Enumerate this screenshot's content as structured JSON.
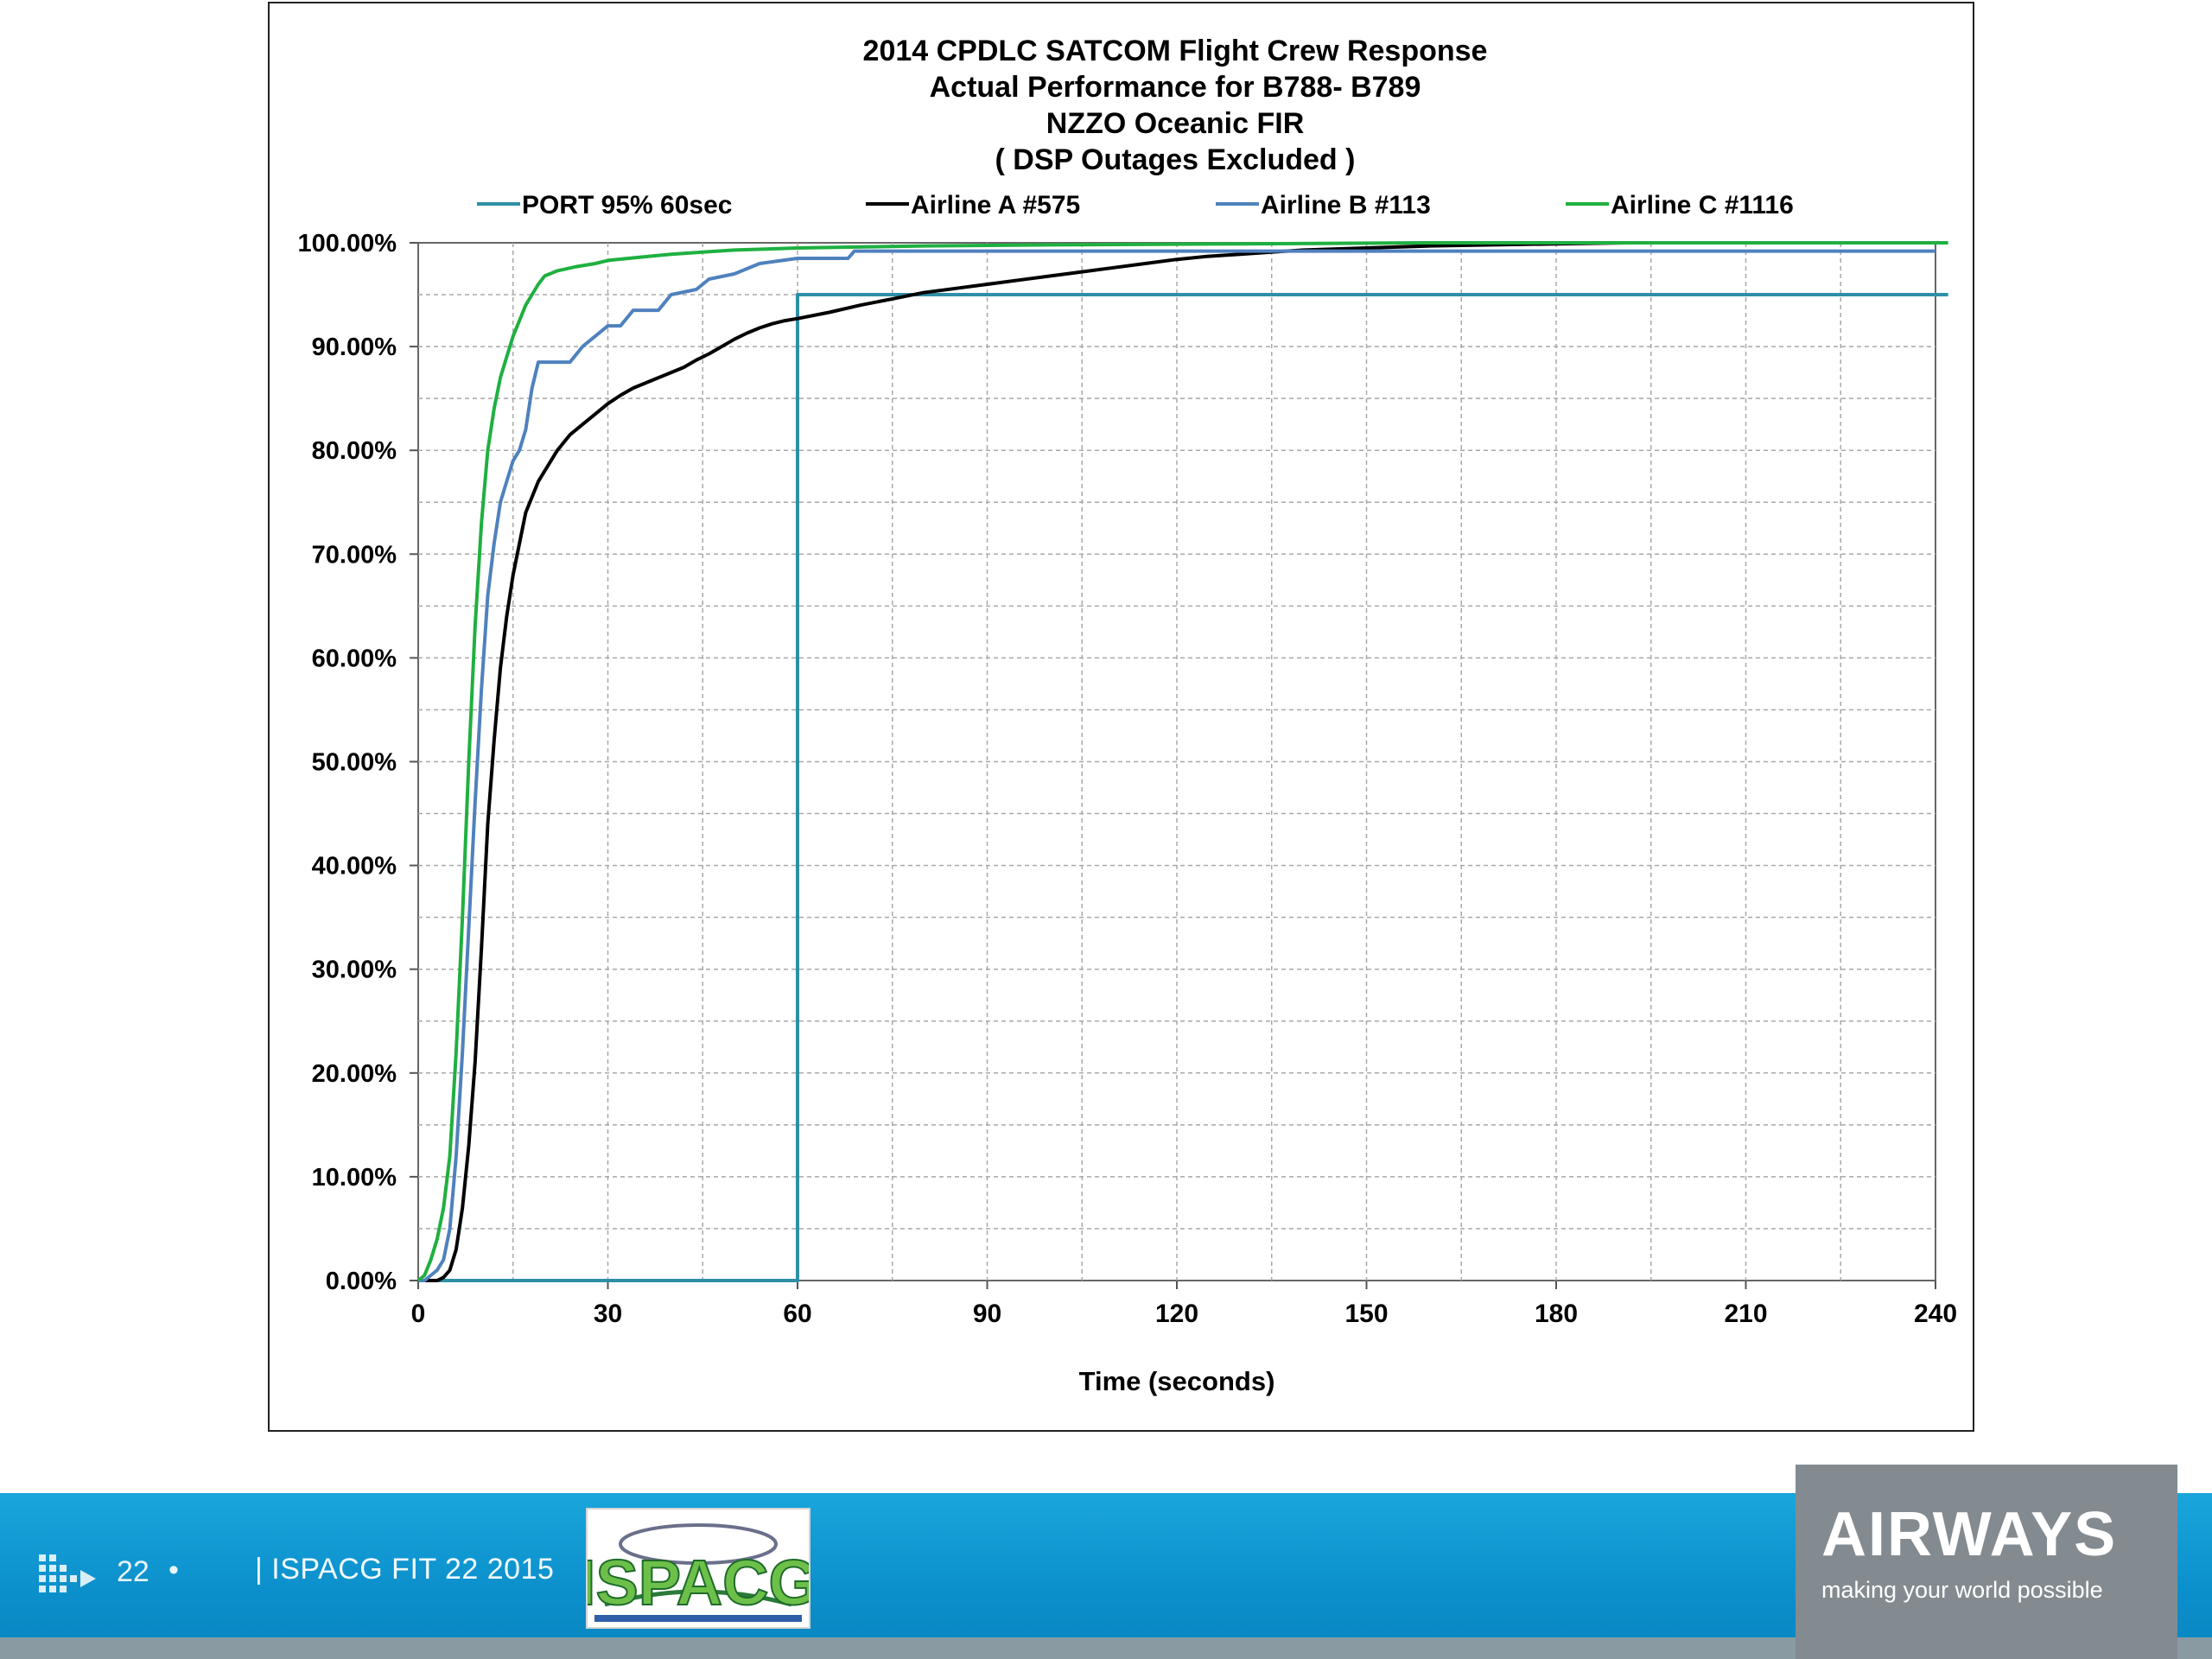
{
  "chart_data": {
    "type": "line",
    "title_lines": [
      "2014 CPDLC  SATCOM   Flight Crew Response",
      "Actual Performance  for B788- B789",
      "NZZO Oceanic FIR",
      "( DSP Outages Excluded )"
    ],
    "xlabel": "Time (seconds)",
    "ylabel": "",
    "xlim": [
      0,
      240
    ],
    "ylim": [
      0,
      100
    ],
    "x_ticks": [
      "0",
      "30",
      "60",
      "90",
      "120",
      "150",
      "180",
      "210",
      "240"
    ],
    "y_ticks": [
      "0.00%",
      "10.00%",
      "20.00%",
      "30.00%",
      "40.00%",
      "50.00%",
      "60.00%",
      "70.00%",
      "80.00%",
      "90.00%",
      "100.00%"
    ],
    "grid": true,
    "legend_position": "top",
    "series": [
      {
        "name": "PORT 95%  60sec",
        "color": "#2e8fa6",
        "points": [
          [
            0,
            0
          ],
          [
            59,
            0
          ],
          [
            60,
            0
          ],
          [
            60,
            95
          ],
          [
            242,
            95
          ]
        ]
      },
      {
        "name": "Airline A #575",
        "color": "#000000",
        "points": [
          [
            0,
            0
          ],
          [
            3,
            0
          ],
          [
            4,
            0.3
          ],
          [
            5,
            1
          ],
          [
            6,
            3
          ],
          [
            7,
            7
          ],
          [
            8,
            13
          ],
          [
            9,
            21
          ],
          [
            10,
            32
          ],
          [
            11,
            44
          ],
          [
            12,
            52
          ],
          [
            13,
            59
          ],
          [
            14,
            64
          ],
          [
            15,
            68
          ],
          [
            16,
            71
          ],
          [
            17,
            74
          ],
          [
            18,
            75.5
          ],
          [
            19,
            77
          ],
          [
            20,
            78
          ],
          [
            22,
            80
          ],
          [
            24,
            81.5
          ],
          [
            26,
            82.5
          ],
          [
            28,
            83.5
          ],
          [
            30,
            84.5
          ],
          [
            32,
            85.3
          ],
          [
            34,
            86
          ],
          [
            36,
            86.5
          ],
          [
            38,
            87
          ],
          [
            40,
            87.5
          ],
          [
            42,
            88
          ],
          [
            44,
            88.7
          ],
          [
            46,
            89.3
          ],
          [
            48,
            90
          ],
          [
            50,
            90.7
          ],
          [
            52,
            91.3
          ],
          [
            54,
            91.8
          ],
          [
            56,
            92.2
          ],
          [
            58,
            92.5
          ],
          [
            60,
            92.7
          ],
          [
            65,
            93.3
          ],
          [
            70,
            94
          ],
          [
            75,
            94.6
          ],
          [
            80,
            95.2
          ],
          [
            85,
            95.6
          ],
          [
            90,
            96
          ],
          [
            95,
            96.4
          ],
          [
            100,
            96.8
          ],
          [
            105,
            97.2
          ],
          [
            110,
            97.6
          ],
          [
            115,
            98
          ],
          [
            120,
            98.4
          ],
          [
            125,
            98.7
          ],
          [
            130,
            98.9
          ],
          [
            135,
            99.1
          ],
          [
            140,
            99.3
          ],
          [
            150,
            99.5
          ],
          [
            160,
            99.7
          ],
          [
            170,
            99.8
          ],
          [
            180,
            99.9
          ],
          [
            191,
            100
          ]
        ]
      },
      {
        "name": "Airline B #113",
        "color": "#4f81bd",
        "points": [
          [
            0,
            0
          ],
          [
            1,
            0
          ],
          [
            2,
            0.5
          ],
          [
            3,
            1
          ],
          [
            4,
            2
          ],
          [
            5,
            5
          ],
          [
            6,
            12
          ],
          [
            7,
            22
          ],
          [
            8,
            34
          ],
          [
            9,
            46
          ],
          [
            10,
            57
          ],
          [
            11,
            66
          ],
          [
            12,
            71
          ],
          [
            13,
            75
          ],
          [
            14,
            77
          ],
          [
            15,
            79
          ],
          [
            16,
            80
          ],
          [
            17,
            82
          ],
          [
            18,
            86
          ],
          [
            19,
            88.5
          ],
          [
            20,
            88.5
          ],
          [
            24,
            88.5
          ],
          [
            26,
            90
          ],
          [
            28,
            91
          ],
          [
            30,
            92
          ],
          [
            32,
            92
          ],
          [
            34,
            93.5
          ],
          [
            38,
            93.5
          ],
          [
            40,
            95
          ],
          [
            44,
            95.5
          ],
          [
            46,
            96.5
          ],
          [
            50,
            97
          ],
          [
            54,
            98
          ],
          [
            60,
            98.5
          ],
          [
            68,
            98.5
          ],
          [
            69,
            99.2
          ],
          [
            240,
            99.2
          ]
        ]
      },
      {
        "name": "Airline C #1116",
        "color": "#1fb040",
        "points": [
          [
            0,
            0
          ],
          [
            1,
            0.5
          ],
          [
            2,
            2
          ],
          [
            3,
            4
          ],
          [
            4,
            7
          ],
          [
            5,
            12
          ],
          [
            6,
            22
          ],
          [
            7,
            35
          ],
          [
            8,
            50
          ],
          [
            9,
            63
          ],
          [
            10,
            73
          ],
          [
            11,
            80
          ],
          [
            12,
            84
          ],
          [
            13,
            87
          ],
          [
            14,
            89
          ],
          [
            15,
            91
          ],
          [
            16,
            92.5
          ],
          [
            17,
            94
          ],
          [
            18,
            95
          ],
          [
            19,
            96
          ],
          [
            20,
            96.8
          ],
          [
            22,
            97.3
          ],
          [
            25,
            97.7
          ],
          [
            28,
            98
          ],
          [
            30,
            98.3
          ],
          [
            35,
            98.6
          ],
          [
            40,
            98.9
          ],
          [
            45,
            99.1
          ],
          [
            50,
            99.3
          ],
          [
            60,
            99.5
          ],
          [
            70,
            99.6
          ],
          [
            80,
            99.7
          ],
          [
            100,
            99.8
          ],
          [
            130,
            99.9
          ],
          [
            160,
            100
          ],
          [
            242,
            100
          ]
        ]
      }
    ]
  },
  "footer": {
    "page_number": "22",
    "separator": "•",
    "event_text": "| ISPACG FIT 22 2015",
    "ispacg_logo_text": "ISPACG",
    "brand_name": "AIRWAYS",
    "tagline": "making your world possible"
  },
  "colors": {
    "footer_blue": "#0b8fcb",
    "brand_grey": "#838b90"
  }
}
